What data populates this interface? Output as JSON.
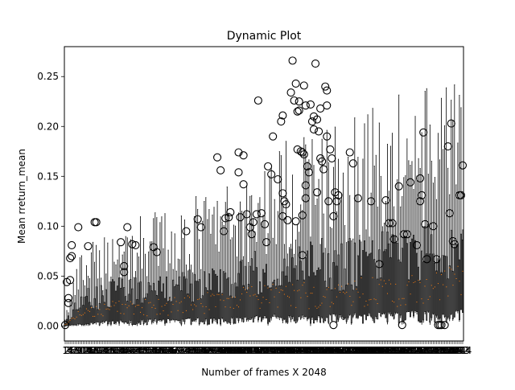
{
  "chart_data": {
    "type": "boxplot",
    "title": "Dynamic Plot",
    "xlabel": "Number of frames X 2048",
    "ylabel": "Mean rreturn_mean",
    "ylim": [
      -0.015,
      0.28
    ],
    "yticks": [
      0.0,
      0.05,
      0.1,
      0.15,
      0.2,
      0.25
    ],
    "ytick_labels": [
      "0.00",
      "0.05",
      "0.10",
      "0.15",
      "0.20",
      "0.25"
    ],
    "n_boxes": 244,
    "x_tick_labels_note": "one overlapping integer tick label per box (1 ... 244), unreadable in source",
    "colors": {
      "box": "#000000",
      "median": "#ff7f0e",
      "outlier": "#000000",
      "background": "#ffffff"
    },
    "x_profile": [
      {
        "box_index": 1,
        "q1": 0.0,
        "median": 0.001,
        "q3": 0.003,
        "whisker_high": 0.008
      },
      {
        "box_index": 10,
        "q1": 0.002,
        "median": 0.012,
        "q3": 0.025,
        "whisker_high": 0.05
      },
      {
        "box_index": 30,
        "q1": 0.004,
        "median": 0.017,
        "q3": 0.033,
        "whisker_high": 0.07
      },
      {
        "box_index": 60,
        "q1": 0.005,
        "median": 0.019,
        "q3": 0.036,
        "whisker_high": 0.082
      },
      {
        "box_index": 100,
        "q1": 0.006,
        "median": 0.025,
        "q3": 0.045,
        "whisker_high": 0.1
      },
      {
        "box_index": 130,
        "q1": 0.008,
        "median": 0.03,
        "q3": 0.058,
        "whisker_high": 0.125
      },
      {
        "box_index": 160,
        "q1": 0.008,
        "median": 0.032,
        "q3": 0.062,
        "whisker_high": 0.14
      },
      {
        "box_index": 200,
        "q1": 0.01,
        "median": 0.035,
        "q3": 0.068,
        "whisker_high": 0.16
      },
      {
        "box_index": 244,
        "q1": 0.012,
        "median": 0.042,
        "q3": 0.075,
        "whisker_high": 0.17
      }
    ],
    "outliers": [
      [
        1,
        0.001
      ],
      [
        2,
        0.044
      ],
      [
        3,
        0.028
      ],
      [
        3,
        0.023
      ],
      [
        4,
        0.068
      ],
      [
        4,
        0.046
      ],
      [
        5,
        0.07
      ],
      [
        5,
        0.081
      ],
      [
        9,
        0.099
      ],
      [
        15,
        0.08
      ],
      [
        19,
        0.104
      ],
      [
        20,
        0.104
      ],
      [
        35,
        0.084
      ],
      [
        37,
        0.06
      ],
      [
        37,
        0.054
      ],
      [
        39,
        0.099
      ],
      [
        42,
        0.082
      ],
      [
        44,
        0.081
      ],
      [
        55,
        0.079
      ],
      [
        57,
        0.074
      ],
      [
        75,
        0.095
      ],
      [
        82,
        0.107
      ],
      [
        84,
        0.099
      ],
      [
        94,
        0.169
      ],
      [
        96,
        0.156
      ],
      [
        98,
        0.095
      ],
      [
        99,
        0.108
      ],
      [
        101,
        0.109
      ],
      [
        102,
        0.114
      ],
      [
        107,
        0.174
      ],
      [
        107,
        0.154
      ],
      [
        108,
        0.109
      ],
      [
        110,
        0.171
      ],
      [
        110,
        0.142
      ],
      [
        112,
        0.112
      ],
      [
        114,
        0.099
      ],
      [
        115,
        0.092
      ],
      [
        116,
        0.104
      ],
      [
        118,
        0.112
      ],
      [
        119,
        0.226
      ],
      [
        121,
        0.113
      ],
      [
        123,
        0.102
      ],
      [
        124,
        0.084
      ],
      [
        125,
        0.16
      ],
      [
        127,
        0.152
      ],
      [
        128,
        0.19
      ],
      [
        131,
        0.147
      ],
      [
        133,
        0.205
      ],
      [
        134,
        0.211
      ],
      [
        134,
        0.133
      ],
      [
        134,
        0.11
      ],
      [
        135,
        0.125
      ],
      [
        136,
        0.122
      ],
      [
        137,
        0.106
      ],
      [
        139,
        0.234
      ],
      [
        140,
        0.266
      ],
      [
        141,
        0.226
      ],
      [
        142,
        0.243
      ],
      [
        142,
        0.105
      ],
      [
        143,
        0.215
      ],
      [
        143,
        0.177
      ],
      [
        144,
        0.225
      ],
      [
        144,
        0.216
      ],
      [
        145,
        0.175
      ],
      [
        146,
        0.174
      ],
      [
        146,
        0.111
      ],
      [
        146,
        0.071
      ],
      [
        147,
        0.241
      ],
      [
        147,
        0.172
      ],
      [
        148,
        0.221
      ],
      [
        148,
        0.141
      ],
      [
        148,
        0.128
      ],
      [
        149,
        0.16
      ],
      [
        150,
        0.154
      ],
      [
        151,
        0.222
      ],
      [
        152,
        0.205
      ],
      [
        153,
        0.21
      ],
      [
        153,
        0.197
      ],
      [
        154,
        0.263
      ],
      [
        155,
        0.207
      ],
      [
        155,
        0.134
      ],
      [
        156,
        0.195
      ],
      [
        157,
        0.218
      ],
      [
        157,
        0.168
      ],
      [
        158,
        0.165
      ],
      [
        159,
        0.157
      ],
      [
        160,
        0.24
      ],
      [
        161,
        0.236
      ],
      [
        161,
        0.221
      ],
      [
        161,
        0.19
      ],
      [
        162,
        0.125
      ],
      [
        163,
        0.177
      ],
      [
        164,
        0.168
      ],
      [
        165,
        0.001
      ],
      [
        165,
        0.11
      ],
      [
        166,
        0.134
      ],
      [
        167,
        0.125
      ],
      [
        168,
        0.131
      ],
      [
        175,
        0.174
      ],
      [
        177,
        0.163
      ],
      [
        180,
        0.128
      ],
      [
        188,
        0.125
      ],
      [
        193,
        0.062
      ],
      [
        197,
        0.126
      ],
      [
        199,
        0.103
      ],
      [
        201,
        0.103
      ],
      [
        202,
        0.087
      ],
      [
        205,
        0.14
      ],
      [
        207,
        0.001
      ],
      [
        208,
        0.092
      ],
      [
        210,
        0.092
      ],
      [
        212,
        0.144
      ],
      [
        216,
        0.081
      ],
      [
        218,
        0.148
      ],
      [
        218,
        0.125
      ],
      [
        219,
        0.131
      ],
      [
        220,
        0.194
      ],
      [
        221,
        0.102
      ],
      [
        222,
        0.067
      ],
      [
        226,
        0.1
      ],
      [
        228,
        0.067
      ],
      [
        229,
        0.001
      ],
      [
        230,
        0.001
      ],
      [
        231,
        0.001
      ],
      [
        233,
        0.001
      ],
      [
        235,
        0.18
      ],
      [
        236,
        0.113
      ],
      [
        237,
        0.203
      ],
      [
        238,
        0.085
      ],
      [
        239,
        0.082
      ],
      [
        242,
        0.131
      ],
      [
        243,
        0.131
      ],
      [
        244,
        0.161
      ]
    ]
  }
}
